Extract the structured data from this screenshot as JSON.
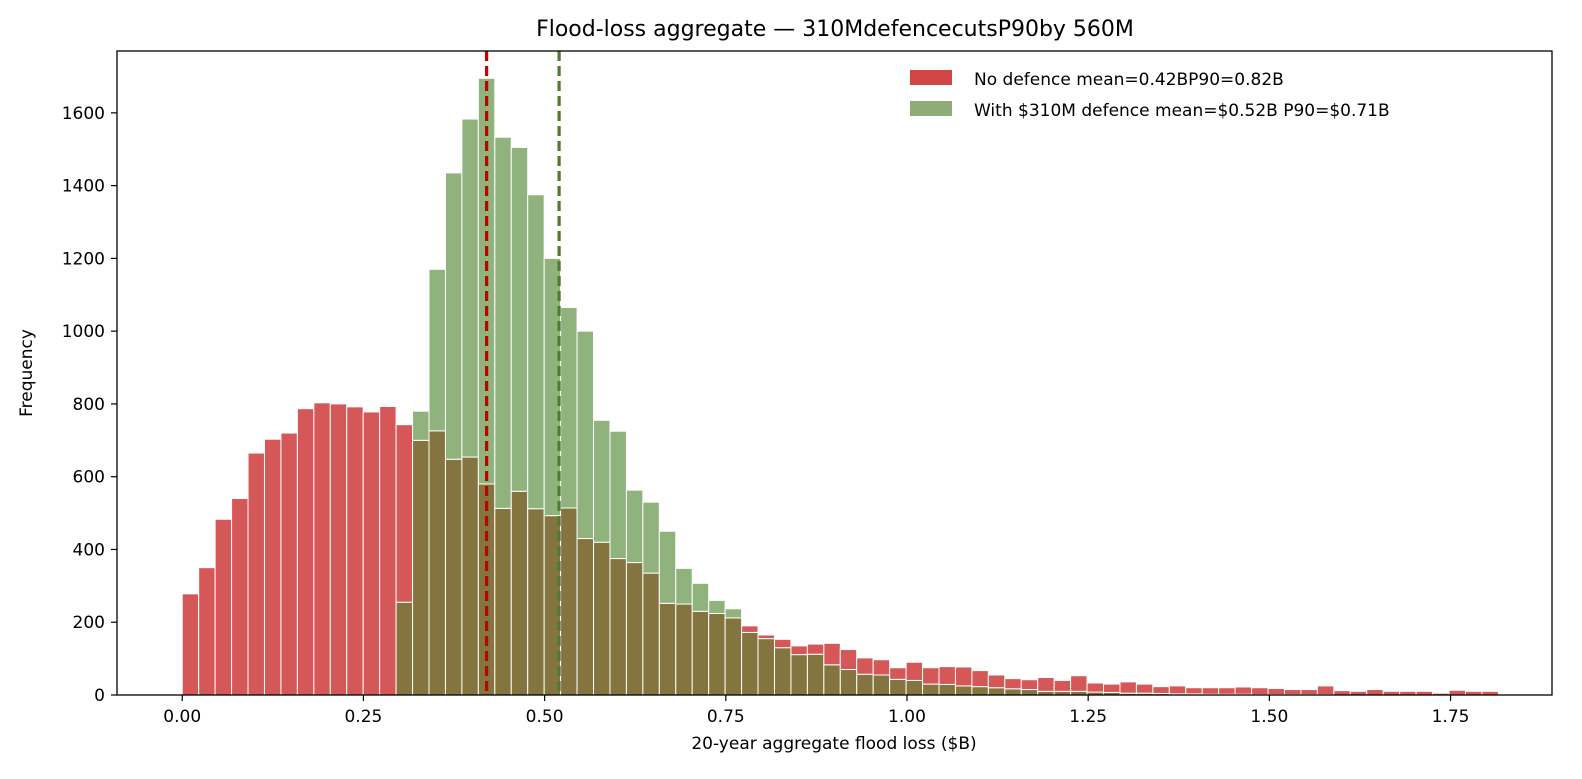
{
  "chart_data": {
    "type": "bar",
    "title": "Flood-loss aggregate — 310MdefencecutsP90by 560M",
    "xlabel": "20-year aggregate flood loss  ($B)",
    "ylabel": "Frequency",
    "xlim": [
      -0.09,
      1.89
    ],
    "ylim": [
      0,
      1770
    ],
    "xticks": [
      0.0,
      0.25,
      0.5,
      0.75,
      1.0,
      1.25,
      1.5,
      1.75
    ],
    "xtick_labels": [
      "0.00",
      "0.25",
      "0.50",
      "0.75",
      "1.00",
      "1.25",
      "1.50",
      "1.75"
    ],
    "yticks": [
      0,
      200,
      400,
      600,
      800,
      1000,
      1200,
      1400,
      1600
    ],
    "ytick_labels": [
      "0",
      "200",
      "400",
      "600",
      "800",
      "1000",
      "1200",
      "1400",
      "1600"
    ],
    "grid": false,
    "legend_position": "top-right",
    "bin_start": 0.0,
    "bin_width": 0.0227,
    "colors": {
      "no_defence": "#d14545",
      "with_defence": "#6b9a52",
      "no_defence_line": "#c00000",
      "with_defence_line": "#4f7a2f",
      "overlap": "#84743f"
    },
    "series": [
      {
        "name": "No defence   mean=0.42BP90=0.82B",
        "key": "no_defence",
        "values": [
          278,
          350,
          483,
          540,
          665,
          703,
          720,
          787,
          803,
          800,
          792,
          778,
          793,
          743,
          700,
          726,
          648,
          654,
          580,
          513,
          560,
          512,
          493,
          514,
          430,
          420,
          375,
          364,
          335,
          252,
          250,
          230,
          224,
          212,
          190,
          165,
          153,
          135,
          140,
          142,
          125,
          102,
          97,
          75,
          90,
          75,
          78,
          77,
          67,
          55,
          45,
          42,
          48,
          40,
          53,
          33,
          30,
          36,
          30,
          23,
          25,
          20,
          20,
          20,
          22,
          20,
          18,
          15,
          15,
          25,
          12,
          10,
          15,
          10,
          10,
          10,
          5,
          13,
          10,
          10
        ]
      },
      {
        "name": "With $310M defence   mean=$0.52B   P90=$0.71B",
        "key": "with_defence",
        "values": [
          0,
          0,
          0,
          0,
          0,
          0,
          0,
          0,
          0,
          0,
          0,
          0,
          0,
          255,
          780,
          1170,
          1435,
          1583,
          1695,
          1533,
          1505,
          1375,
          1200,
          1065,
          1000,
          755,
          725,
          563,
          530,
          450,
          348,
          307,
          260,
          237,
          172,
          155,
          130,
          111,
          112,
          83,
          70,
          57,
          55,
          43,
          40,
          30,
          29,
          25,
          23,
          20,
          17,
          15,
          10,
          10,
          10,
          8,
          7,
          5,
          5,
          4,
          3,
          3,
          2,
          2,
          2,
          1,
          1,
          1,
          1,
          1,
          0,
          0,
          0,
          0,
          0,
          0,
          0,
          0,
          0,
          0
        ]
      }
    ],
    "vlines": [
      {
        "key": "no_defence",
        "x": 0.42
      },
      {
        "key": "with_defence",
        "x": 0.52
      }
    ]
  }
}
